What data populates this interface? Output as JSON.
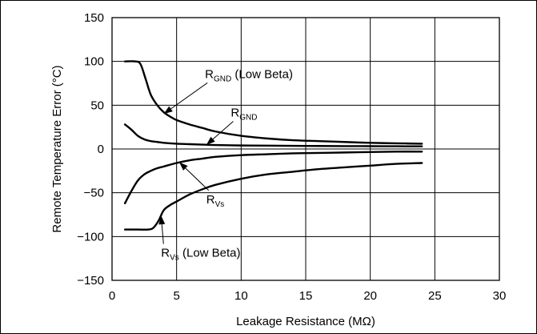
{
  "chart_data": {
    "type": "line",
    "xlabel": "Leakage Resistance (MΩ)",
    "ylabel": "Remote Temperature Error (°C)",
    "xlim": [
      0,
      30
    ],
    "ylim": [
      -150,
      150
    ],
    "xticks": [
      0,
      5,
      10,
      15,
      20,
      25,
      30
    ],
    "yticks": [
      150,
      100,
      50,
      0,
      -50,
      -100,
      -150
    ],
    "xtick_labels": [
      "0",
      "5",
      "10",
      "15",
      "20",
      "25",
      "30"
    ],
    "ytick_labels": [
      "150",
      "100",
      "50",
      "0",
      "−50",
      "−100",
      "−150"
    ],
    "grid": true,
    "series": [
      {
        "name": "RGND (Low Beta)",
        "x": [
          1,
          1.8,
          2.2,
          2.6,
          3,
          3.5,
          4,
          4.5,
          5,
          6,
          7,
          8,
          10,
          12,
          14,
          16,
          18,
          20,
          22,
          24
        ],
        "y": [
          100,
          100,
          97,
          80,
          62,
          50,
          42,
          37,
          33,
          28,
          24,
          20,
          15,
          12,
          10,
          9,
          8,
          7,
          6.5,
          6
        ]
      },
      {
        "name": "RGND",
        "x": [
          1,
          1.5,
          2,
          2.5,
          3,
          3.5,
          4,
          5,
          6,
          7,
          8,
          10,
          12,
          15,
          18,
          20,
          22,
          24
        ],
        "y": [
          28,
          22,
          15,
          11,
          9,
          8,
          7,
          6,
          5.5,
          5,
          4.5,
          4,
          3.8,
          3.5,
          3.3,
          3.2,
          3.1,
          3
        ]
      },
      {
        "name": "RVs",
        "x": [
          1,
          1.5,
          2,
          2.5,
          3,
          3.5,
          4,
          5,
          6,
          7,
          8,
          10,
          12,
          14,
          16,
          18,
          20,
          22,
          24
        ],
        "y": [
          -62,
          -48,
          -36,
          -29,
          -25,
          -22,
          -20,
          -16,
          -13,
          -11,
          -9,
          -7,
          -6,
          -5,
          -4.5,
          -4,
          -3.5,
          -3,
          -3
        ]
      },
      {
        "name": "RVs (Low Beta)",
        "x": [
          1,
          2,
          2.8,
          3.2,
          3.6,
          4,
          4.5,
          5,
          6,
          7,
          8,
          10,
          12,
          14,
          16,
          18,
          20,
          22,
          24
        ],
        "y": [
          -92,
          -92,
          -92,
          -90,
          -82,
          -70,
          -64,
          -60,
          -52,
          -46,
          -41,
          -34,
          -29,
          -26,
          -23,
          -21,
          -19,
          -17,
          -16
        ]
      }
    ],
    "annotations": [
      {
        "base": "R",
        "sub": "GND",
        "suffix": " (Low Beta)",
        "at": [
          7.2,
          81
        ],
        "arrow_to": [
          4,
          40
        ]
      },
      {
        "base": "R",
        "sub": "GND",
        "suffix": "",
        "at": [
          9.2,
          37
        ],
        "arrow_to": [
          7.3,
          4.6
        ]
      },
      {
        "base": "R",
        "sub": "Vs",
        "suffix": "",
        "at": [
          7.3,
          -62
        ],
        "arrow_to": [
          5.2,
          -15
        ]
      },
      {
        "base": "R",
        "sub": "Vs",
        "suffix": " (Low Beta)",
        "at": [
          3.8,
          -123
        ],
        "arrow_to": [
          3.8,
          -76
        ]
      }
    ]
  }
}
